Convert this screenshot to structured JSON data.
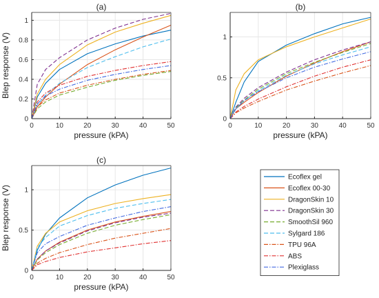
{
  "series_styles": [
    {
      "name": "Ecoflex gel",
      "color": "#0072BD",
      "dash": "solid"
    },
    {
      "name": "Ecoflex 00-30",
      "color": "#D95319",
      "dash": "solid"
    },
    {
      "name": "DragonSkin 10",
      "color": "#EDB120",
      "dash": "solid"
    },
    {
      "name": "DragonSkin 30",
      "color": "#7E2F8E",
      "dash": "dashed"
    },
    {
      "name": "SmoothSil 960",
      "color": "#77AC30",
      "dash": "dashed"
    },
    {
      "name": "Sylgard 186",
      "color": "#4DBEEE",
      "dash": "dashed"
    },
    {
      "name": "TPU 96A",
      "color": "#D95319",
      "dash": "dashdot"
    },
    {
      "name": "ABS",
      "color": "#E03030",
      "dash": "dashdot"
    },
    {
      "name": "Plexiglass",
      "color": "#4169E1",
      "dash": "dashdot"
    }
  ],
  "chart_data": [
    {
      "type": "line",
      "title": "(a)",
      "xlabel": "pressure (kPA)",
      "ylabel": "Blep response (V)",
      "xlim": [
        0,
        50
      ],
      "ylim": [
        0,
        1.08
      ],
      "xticks": [
        "0",
        "10",
        "20",
        "30",
        "40",
        "50"
      ],
      "yticks": [
        "0",
        "0.2",
        "0.4",
        "0.6",
        "0.8",
        "1"
      ],
      "grid": true,
      "series": [
        {
          "name": "Ecoflex gel",
          "x": [
            0,
            2,
            5,
            10,
            20,
            30,
            40,
            50
          ],
          "y": [
            0,
            0.22,
            0.36,
            0.5,
            0.66,
            0.76,
            0.84,
            0.9
          ]
        },
        {
          "name": "Ecoflex 00-30",
          "x": [
            0,
            2,
            5,
            10,
            20,
            30,
            40,
            50
          ],
          "y": [
            0,
            0.12,
            0.22,
            0.35,
            0.55,
            0.7,
            0.83,
            0.95
          ]
        },
        {
          "name": "DragonSkin 10",
          "x": [
            0,
            2,
            5,
            10,
            20,
            30,
            40,
            50
          ],
          "y": [
            0,
            0.25,
            0.4,
            0.55,
            0.75,
            0.88,
            0.97,
            1.05
          ]
        },
        {
          "name": "DragonSkin 30",
          "x": [
            0,
            2,
            5,
            10,
            20,
            30,
            40,
            50
          ],
          "y": [
            0,
            0.35,
            0.5,
            0.62,
            0.8,
            0.92,
            1.01,
            1.07
          ]
        },
        {
          "name": "SmoothSil 960",
          "x": [
            0,
            2,
            5,
            10,
            20,
            30,
            40,
            50
          ],
          "y": [
            0,
            0.1,
            0.17,
            0.24,
            0.32,
            0.39,
            0.44,
            0.48
          ]
        },
        {
          "name": "Sylgard 186",
          "x": [
            0,
            2,
            5,
            10,
            20,
            30,
            40,
            50
          ],
          "y": [
            0,
            0.14,
            0.24,
            0.36,
            0.52,
            0.63,
            0.73,
            0.81
          ]
        },
        {
          "name": "TPU 96A",
          "x": [
            0,
            2,
            5,
            10,
            20,
            30,
            40,
            50
          ],
          "y": [
            0,
            0.12,
            0.19,
            0.26,
            0.34,
            0.4,
            0.45,
            0.49
          ]
        },
        {
          "name": "ABS",
          "x": [
            0,
            2,
            5,
            10,
            20,
            30,
            40,
            50
          ],
          "y": [
            0,
            0.17,
            0.26,
            0.34,
            0.43,
            0.49,
            0.54,
            0.58
          ]
        },
        {
          "name": "Plexiglass",
          "x": [
            0,
            2,
            5,
            10,
            20,
            30,
            40,
            50
          ],
          "y": [
            0,
            0.15,
            0.23,
            0.3,
            0.39,
            0.45,
            0.5,
            0.54
          ]
        }
      ]
    },
    {
      "type": "line",
      "title": "(b)",
      "xlabel": "pressure (kPA)",
      "ylabel": "",
      "xlim": [
        0,
        50
      ],
      "ylim": [
        0,
        1.3
      ],
      "xticks": [
        "0",
        "10",
        "20",
        "30",
        "40",
        "50"
      ],
      "yticks": [
        "0",
        "0.5",
        "1"
      ],
      "grid": true,
      "series": [
        {
          "name": "Ecoflex gel",
          "x": [
            0,
            2,
            5,
            10,
            20,
            30,
            40,
            50
          ],
          "y": [
            0,
            0.2,
            0.45,
            0.7,
            0.9,
            1.04,
            1.16,
            1.24
          ]
        },
        {
          "name": "Ecoflex 00-30",
          "x": [
            0,
            2,
            5,
            10,
            20,
            30,
            40,
            50
          ],
          "y": [
            0,
            0.12,
            0.2,
            0.32,
            0.52,
            0.68,
            0.82,
            0.94
          ]
        },
        {
          "name": "DragonSkin 10",
          "x": [
            0,
            2,
            5,
            10,
            20,
            30,
            40,
            50
          ],
          "y": [
            0,
            0.35,
            0.55,
            0.72,
            0.88,
            1.0,
            1.11,
            1.22
          ]
        },
        {
          "name": "DragonSkin 30",
          "x": [
            0,
            2,
            5,
            10,
            20,
            30,
            40,
            50
          ],
          "y": [
            0,
            0.14,
            0.25,
            0.38,
            0.57,
            0.72,
            0.84,
            0.94
          ]
        },
        {
          "name": "SmoothSil 960",
          "x": [
            0,
            2,
            5,
            10,
            20,
            30,
            40,
            50
          ],
          "y": [
            0,
            0.13,
            0.23,
            0.36,
            0.55,
            0.69,
            0.81,
            0.92
          ]
        },
        {
          "name": "Sylgard 186",
          "x": [
            0,
            2,
            5,
            10,
            20,
            30,
            40,
            50
          ],
          "y": [
            0,
            0.12,
            0.22,
            0.34,
            0.53,
            0.67,
            0.78,
            0.88
          ]
        },
        {
          "name": "TPU 96A",
          "x": [
            0,
            2,
            5,
            10,
            20,
            30,
            40,
            50
          ],
          "y": [
            0,
            0.07,
            0.13,
            0.21,
            0.35,
            0.46,
            0.56,
            0.65
          ]
        },
        {
          "name": "ABS",
          "x": [
            0,
            2,
            5,
            10,
            20,
            30,
            40,
            50
          ],
          "y": [
            0,
            0.08,
            0.15,
            0.24,
            0.39,
            0.52,
            0.63,
            0.72
          ]
        },
        {
          "name": "Plexiglass",
          "x": [
            0,
            2,
            5,
            10,
            20,
            30,
            40,
            50
          ],
          "y": [
            0,
            0.12,
            0.22,
            0.33,
            0.5,
            0.63,
            0.73,
            0.82
          ]
        }
      ]
    },
    {
      "type": "line",
      "title": "(c)",
      "xlabel": "pressure (kPA)",
      "ylabel": "Blep response (V)",
      "xlim": [
        0,
        50
      ],
      "ylim": [
        0,
        1.3
      ],
      "xticks": [
        "0",
        "10",
        "20",
        "30",
        "40",
        "50"
      ],
      "yticks": [
        "0",
        "0.5",
        "1"
      ],
      "grid": true,
      "series": [
        {
          "name": "Ecoflex gel",
          "x": [
            0,
            2,
            5,
            10,
            20,
            30,
            40,
            50
          ],
          "y": [
            0,
            0.25,
            0.45,
            0.65,
            0.9,
            1.06,
            1.18,
            1.27
          ]
        },
        {
          "name": "Ecoflex 00-30",
          "x": [
            0,
            2,
            5,
            10,
            20,
            30,
            40,
            50
          ],
          "y": [
            0,
            0.14,
            0.24,
            0.35,
            0.5,
            0.6,
            0.67,
            0.73
          ]
        },
        {
          "name": "DragonSkin 10",
          "x": [
            0,
            2,
            5,
            10,
            20,
            30,
            40,
            50
          ],
          "y": [
            0,
            0.3,
            0.46,
            0.6,
            0.74,
            0.83,
            0.89,
            0.94
          ]
        },
        {
          "name": "DragonSkin 30",
          "x": [
            0,
            2,
            5,
            10,
            20,
            30,
            40,
            50
          ],
          "y": [
            0,
            0.14,
            0.24,
            0.34,
            0.49,
            0.59,
            0.66,
            0.71
          ]
        },
        {
          "name": "SmoothSil 960",
          "x": [
            0,
            2,
            5,
            10,
            20,
            30,
            40,
            50
          ],
          "y": [
            0,
            0.13,
            0.22,
            0.32,
            0.46,
            0.56,
            0.63,
            0.69
          ]
        },
        {
          "name": "Sylgard 186",
          "x": [
            0,
            2,
            5,
            10,
            20,
            30,
            40,
            50
          ],
          "y": [
            0,
            0.28,
            0.41,
            0.55,
            0.68,
            0.77,
            0.83,
            0.88
          ]
        },
        {
          "name": "TPU 96A",
          "x": [
            0,
            2,
            5,
            10,
            20,
            30,
            40,
            50
          ],
          "y": [
            0,
            0.09,
            0.15,
            0.22,
            0.32,
            0.4,
            0.46,
            0.52
          ]
        },
        {
          "name": "ABS",
          "x": [
            0,
            2,
            5,
            10,
            20,
            30,
            40,
            50
          ],
          "y": [
            0,
            0.07,
            0.11,
            0.16,
            0.23,
            0.28,
            0.33,
            0.37
          ]
        },
        {
          "name": "Plexiglass",
          "x": [
            0,
            2,
            5,
            10,
            20,
            30,
            40,
            50
          ],
          "y": [
            0,
            0.22,
            0.33,
            0.42,
            0.56,
            0.65,
            0.73,
            0.79
          ]
        }
      ]
    }
  ],
  "legend": {
    "placement": "bottom-right",
    "entries": [
      "Ecoflex gel",
      "Ecoflex 00-30",
      "DragonSkin 10",
      "DragonSkin 30",
      "SmoothSil 960",
      "Sylgard 186",
      "TPU 96A",
      "ABS",
      "Plexiglass"
    ]
  }
}
